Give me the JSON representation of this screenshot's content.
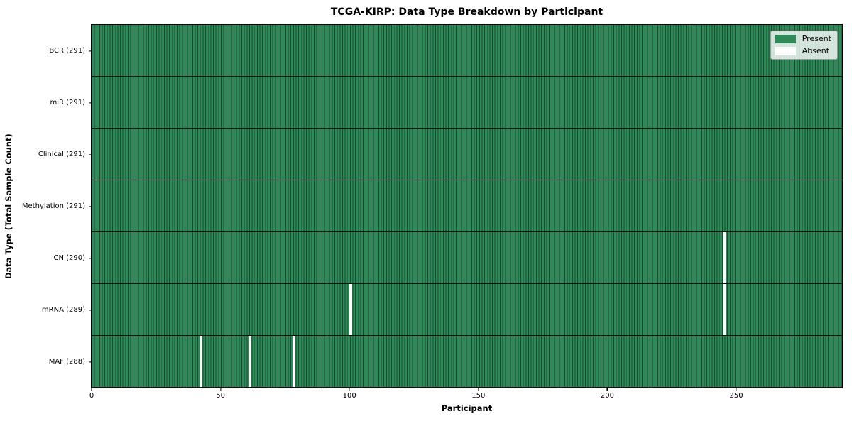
{
  "chart_data": {
    "type": "heatmap",
    "title": "TCGA-KIRP: Data Type Breakdown by Participant",
    "xlabel": "Participant",
    "ylabel": "Data Type (Total Sample Count)",
    "x_ticks": [
      0,
      50,
      100,
      150,
      200,
      250
    ],
    "xlim": [
      0,
      291
    ],
    "n_participants": 291,
    "grid": false,
    "legend_position": "upper right",
    "colors": {
      "present": "#2e8b57",
      "absent": "#ffffff",
      "bar_edge": "#1d4734",
      "row_separator": "#101010",
      "background": "#ffffff"
    },
    "rows": [
      {
        "data_type": "BCR",
        "label": "BCR (291)",
        "total": 291,
        "absent_participants": []
      },
      {
        "data_type": "miR",
        "label": "miR (291)",
        "total": 291,
        "absent_participants": []
      },
      {
        "data_type": "Clinical",
        "label": "Clinical (291)",
        "total": 291,
        "absent_participants": []
      },
      {
        "data_type": "Methylation",
        "label": "Methylation (291)",
        "total": 291,
        "absent_participants": []
      },
      {
        "data_type": "CN",
        "label": "CN (290)",
        "total": 290,
        "absent_participants": [
          245
        ]
      },
      {
        "data_type": "mRNA",
        "label": "mRNA (289)",
        "total": 289,
        "absent_participants": [
          100,
          245
        ]
      },
      {
        "data_type": "MAF",
        "label": "MAF (288)",
        "total": 288,
        "absent_participants": [
          42,
          61,
          78
        ]
      }
    ],
    "legend": [
      {
        "label": "Present",
        "color": "#2e8b57"
      },
      {
        "label": "Absent",
        "color": "#ffffff"
      }
    ]
  }
}
